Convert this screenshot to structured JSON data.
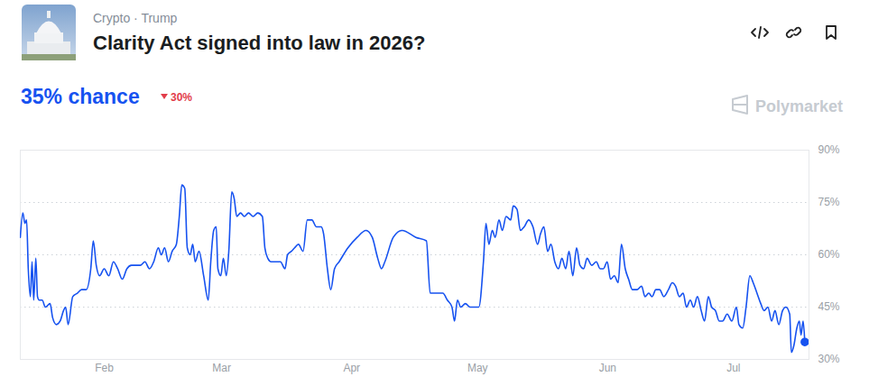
{
  "header": {
    "category": "Crypto · Trump",
    "title": "Clarity Act signed into law in 2026?",
    "probability": "35% chance",
    "change": "30%",
    "brand": "Polymarket"
  },
  "chart_data": {
    "type": "line",
    "color": "#1652f0",
    "marker": "end",
    "grid": true,
    "x": [
      12.0,
      12.6,
      13.1,
      13.5,
      13.9,
      14.4,
      14.8,
      15.2,
      15.7,
      16.1,
      16.5,
      17.2,
      18.0,
      19.1,
      19.7,
      20.6,
      21.5,
      22.3,
      22.8,
      23.4,
      24.5,
      25.6,
      26.6,
      27.7,
      28.8,
      29.4,
      30.1,
      30.9,
      32.0,
      33.1,
      34.2,
      35.2,
      36.3,
      37.4,
      38.5,
      39.5,
      40.6,
      41.7,
      42.8,
      43.8,
      44.9,
      45.6,
      46.4,
      47.3,
      48.2,
      49.2,
      49.9,
      50.5,
      51.2,
      51.8,
      52.5,
      53.1,
      53.7,
      54.6,
      55.7,
      56.8,
      57.4,
      58.1,
      58.7,
      59.1,
      59.8,
      60.4,
      61.1,
      61.7,
      62.4,
      63.0,
      63.6,
      64.5,
      65.4,
      66.4,
      67.5,
      68.6,
      69.7,
      70.3,
      71.0,
      71.8,
      72.9,
      74.0,
      75.1,
      75.7,
      76.6,
      77.4,
      78.3,
      79.4,
      80.4,
      81.5,
      82.6,
      83.7,
      84.3,
      85.2,
      86.0,
      86.9,
      88.0,
      90.1,
      92.3,
      94.4,
      95.9,
      97.2,
      98.1,
      98.9,
      100.9,
      103.0,
      106.3,
      108.8,
      109.7,
      111.6,
      112.7,
      113.8,
      114.9,
      115.5,
      116.2,
      117.0,
      118.1,
      119.2,
      121.3,
      122.4,
      123.0,
      123.7,
      124.5,
      125.2,
      126.1,
      126.9,
      127.8,
      128.9,
      129.5,
      130.4,
      131.2,
      132.1,
      133.2,
      134.2,
      135.3,
      136.0,
      136.8,
      137.7,
      138.5,
      139.4,
      140.3,
      141.1,
      142.0,
      142.8,
      143.7,
      144.6,
      145.4,
      146.3,
      147.1,
      148.2,
      149.3,
      150.2,
      151.0,
      151.9,
      152.7,
      153.6,
      154.5,
      155.3,
      156.2,
      157.0,
      157.9,
      159.0,
      160.1,
      160.9,
      161.8,
      162.6,
      163.5,
      164.4,
      165.4,
      166.5,
      167.4,
      168.2,
      169.1,
      170.0,
      170.8,
      171.7,
      172.5,
      173.4,
      174.3,
      175.1,
      176.0,
      176.8,
      177.7,
      178.6,
      179.4,
      180.5,
      181.6,
      182.7,
      183.3,
      184.2,
      185.0,
      185.9,
      186.7,
      187.6,
      188.5,
      189.3,
      190.2,
      191.1,
      191.9,
      192.8,
      193.7,
      194.5,
      195.4,
      195.8,
      196.4,
      197.1,
      197.7,
      198.1,
      198.6,
      199.0
    ],
    "values": [
      65,
      72,
      69,
      70,
      56,
      48,
      58,
      47,
      59,
      48,
      47,
      47,
      45,
      46,
      42,
      40,
      41,
      44,
      45,
      40,
      48,
      49,
      50,
      50,
      56,
      64,
      57,
      54,
      56,
      54,
      58,
      56,
      53,
      56,
      57,
      57,
      57,
      58,
      56,
      58,
      62,
      60,
      62,
      58,
      61,
      63,
      71,
      80,
      79,
      62,
      60,
      63,
      58,
      61,
      54,
      47,
      58,
      67,
      68,
      56,
      54,
      59,
      54,
      61,
      78,
      76,
      71,
      72,
      71,
      72,
      71,
      72,
      71,
      62,
      59,
      58,
      58,
      58,
      56,
      60,
      61,
      62,
      63,
      61,
      70,
      70,
      68,
      68,
      66,
      56,
      50,
      56,
      58,
      62,
      65,
      67,
      65,
      59,
      56,
      58,
      65,
      67,
      65,
      64,
      49,
      49,
      49,
      47,
      45,
      41,
      47,
      45,
      46,
      45,
      45,
      58,
      69,
      63,
      67,
      65,
      70,
      67,
      71,
      70,
      74,
      73,
      67,
      68,
      70,
      68,
      63,
      66,
      68,
      61,
      63,
      58,
      56,
      59,
      56,
      61,
      54,
      62,
      57,
      56,
      59,
      57,
      58,
      56,
      56,
      58,
      53,
      54,
      52,
      63,
      56,
      53,
      50,
      50,
      51,
      48,
      49,
      48,
      50,
      50,
      48,
      50,
      52,
      51,
      48,
      49,
      45,
      47,
      45,
      48,
      44,
      41,
      48,
      45,
      44,
      41,
      41,
      43,
      41,
      45,
      40,
      39,
      45,
      54,
      52,
      49,
      46,
      44,
      45,
      41,
      44,
      40,
      44,
      45,
      43,
      32,
      34,
      39,
      41,
      37,
      41,
      35
    ],
    "xlim": [
      12,
      200
    ],
    "xticks": [
      {
        "value": 32,
        "label": "Feb"
      },
      {
        "value": 60,
        "label": "Mar"
      },
      {
        "value": 91,
        "label": "Apr"
      },
      {
        "value": 121,
        "label": "May"
      },
      {
        "value": 152,
        "label": "Jun"
      },
      {
        "value": 182,
        "label": "Jul"
      }
    ],
    "ylim": [
      30,
      90
    ],
    "yticks": [
      {
        "value": 30,
        "label": "30%"
      },
      {
        "value": 45,
        "label": "45%"
      },
      {
        "value": 60,
        "label": "60%"
      },
      {
        "value": 75,
        "label": "75%"
      },
      {
        "value": 90,
        "label": "90%"
      }
    ]
  }
}
